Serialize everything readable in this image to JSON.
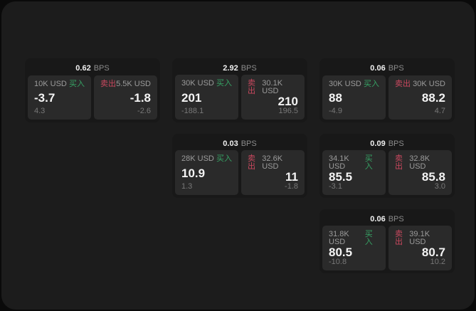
{
  "labels": {
    "bps_unit": "BPS",
    "buy": "买入",
    "sell": "卖出"
  },
  "colors": {
    "background": "#0a0a0a",
    "panel": "#1c1c1c",
    "card": "#181818",
    "subpanel": "#2a2a2a",
    "buy_green": "#36a264",
    "sell_red": "#c9485e"
  },
  "cards": [
    {
      "bps": "0.62",
      "buy": {
        "amount": "10K USD",
        "value": "-3.7",
        "delta": "4.3"
      },
      "sell": {
        "amount": "5.5K USD",
        "value": "-1.8",
        "delta": "-2.6"
      }
    },
    {
      "bps": "2.92",
      "buy": {
        "amount": "30K USD",
        "value": "201",
        "delta": "-188.1"
      },
      "sell": {
        "amount": "30.1K USD",
        "value": "210",
        "delta": "196.5"
      }
    },
    {
      "bps": "0.06",
      "buy": {
        "amount": "30K USD",
        "value": "88",
        "delta": "-4.9"
      },
      "sell": {
        "amount": "30K USD",
        "value": "88.2",
        "delta": "4.7"
      }
    },
    {
      "bps": "0.03",
      "buy": {
        "amount": "28K USD",
        "value": "10.9",
        "delta": "1.3"
      },
      "sell": {
        "amount": "32.6K USD",
        "value": "11",
        "delta": "-1.8"
      }
    },
    {
      "bps": "0.09",
      "buy": {
        "amount": "34.1K USD",
        "value": "85.5",
        "delta": "-3.1"
      },
      "sell": {
        "amount": "32.8K USD",
        "value": "85.8",
        "delta": "3.0"
      }
    },
    {
      "bps": "0.06",
      "buy": {
        "amount": "31.8K USD",
        "value": "80.5",
        "delta": "-10.8"
      },
      "sell": {
        "amount": "39.1K USD",
        "value": "80.7",
        "delta": "10.2"
      }
    }
  ]
}
